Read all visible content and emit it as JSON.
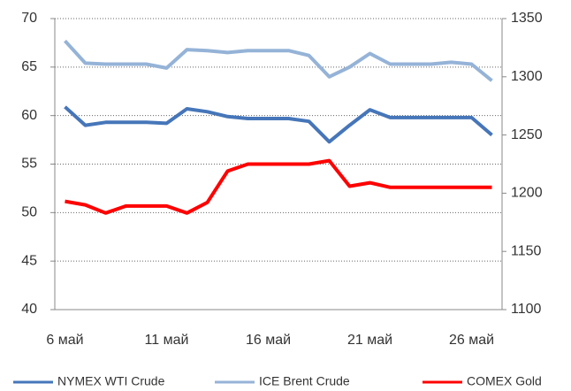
{
  "chart_data": {
    "type": "line",
    "categories": [
      "6 май",
      null,
      null,
      null,
      null,
      "11 май",
      null,
      null,
      null,
      null,
      "16 май",
      null,
      null,
      null,
      null,
      "21 май",
      null,
      null,
      null,
      null,
      "26 май",
      null
    ],
    "series": [
      {
        "name": "NYMEX WTI Crude",
        "color": "#4676b9",
        "values": [
          60.9,
          59.0,
          59.3,
          59.3,
          59.3,
          59.2,
          60.7,
          60.4,
          59.9,
          59.7,
          59.7,
          59.7,
          59.4,
          57.3,
          59.0,
          60.6,
          59.8,
          59.8,
          59.8,
          59.8,
          59.8,
          58.0
        ]
      },
      {
        "name": "ICE Brent Crude",
        "color": "#95b3d7",
        "values": [
          67.7,
          65.4,
          65.3,
          65.3,
          65.3,
          64.9,
          66.8,
          66.7,
          66.5,
          66.7,
          66.7,
          66.7,
          66.2,
          64.0,
          65.0,
          66.4,
          65.3,
          65.3,
          65.3,
          65.5,
          65.3,
          63.6
        ]
      },
      {
        "name": "COMEX Gold",
        "color": "#ff0000",
        "axis": "y2",
        "values": [
          1193,
          1190,
          1183,
          1189,
          1189,
          1189,
          1183,
          1192,
          1219,
          1225,
          1225,
          1225,
          1225,
          1228,
          1206,
          1209,
          1205,
          1205,
          1205,
          1205,
          1205,
          1205
        ]
      }
    ],
    "ylim": [
      40,
      70
    ],
    "yticks": [
      40,
      45,
      50,
      55,
      60,
      65,
      70
    ],
    "y2lim": [
      1100,
      1350
    ],
    "y2ticks": [
      1100,
      1150,
      1200,
      1250,
      1300,
      1350
    ],
    "grid": true,
    "legend": "bottom"
  }
}
